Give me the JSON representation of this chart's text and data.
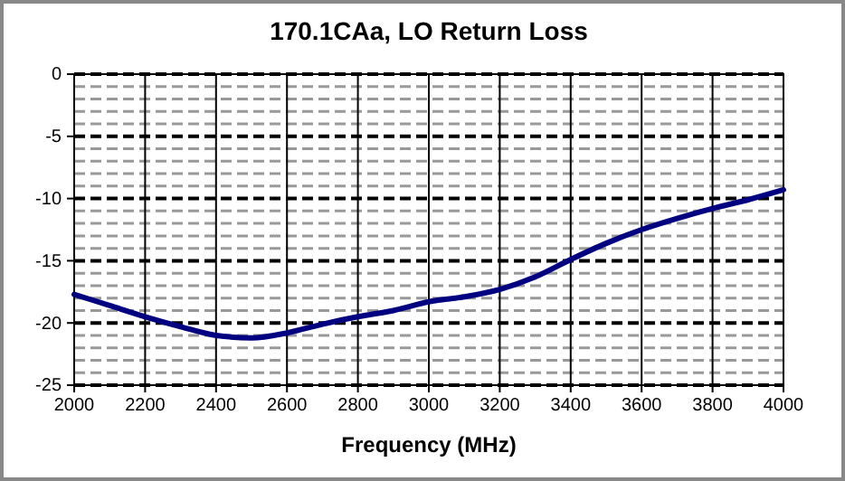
{
  "chart_data": {
    "type": "line",
    "title": "170.1CAa, LO Return Loss",
    "xlabel": "Frequency (MHz)",
    "x": [
      2000,
      2100,
      2200,
      2300,
      2400,
      2500,
      2600,
      2700,
      2800,
      2900,
      3000,
      3100,
      3200,
      3300,
      3400,
      3500,
      3600,
      3700,
      3800,
      3900,
      4000
    ],
    "series": [
      {
        "color": "#000080",
        "values": [
          -17.7,
          -18.6,
          -19.5,
          -20.3,
          -21.0,
          -21.2,
          -20.8,
          -20.1,
          -19.5,
          -19.0,
          -18.3,
          -17.9,
          -17.3,
          -16.3,
          -14.9,
          -13.6,
          -12.5,
          -11.6,
          -10.8,
          -10.1,
          -9.3
        ]
      }
    ],
    "xlim": [
      2000,
      4000
    ],
    "xticks": [
      2000,
      2200,
      2400,
      2600,
      2800,
      3000,
      3200,
      3400,
      3600,
      3800,
      4000
    ],
    "ylim": [
      -25,
      0
    ],
    "yticks": [
      -25,
      -20,
      -15,
      -10,
      -5,
      0
    ],
    "grid": true,
    "marker": "none",
    "line_style": "solid"
  }
}
